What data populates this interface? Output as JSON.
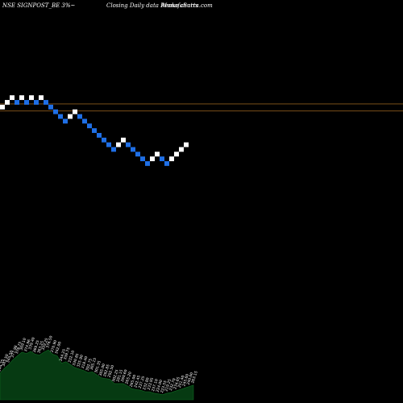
{
  "header": {
    "left": "NSE SIGNPOST_BE 3%~",
    "center": "Closing Daily data  Renko  charts",
    "right": "MunafaSutra.com"
  },
  "chart_data": {
    "type": "renko",
    "price_range": [
      190,
      360
    ],
    "reference_lines": [
      302.0,
      297.5
    ],
    "bricks": [
      {
        "dir": "up",
        "bottom": 298.5
      },
      {
        "dir": "up",
        "bottom": 301.5
      },
      {
        "dir": "up",
        "bottom": 304.5
      },
      {
        "dir": "down",
        "bottom": 301.5
      },
      {
        "dir": "up",
        "bottom": 304.5
      },
      {
        "dir": "down",
        "bottom": 301.5
      },
      {
        "dir": "up",
        "bottom": 304.5
      },
      {
        "dir": "down",
        "bottom": 301.5
      },
      {
        "dir": "up",
        "bottom": 304.5
      },
      {
        "dir": "down",
        "bottom": 301.5
      },
      {
        "dir": "down",
        "bottom": 298.5
      },
      {
        "dir": "down",
        "bottom": 295.5
      },
      {
        "dir": "down",
        "bottom": 292.5
      },
      {
        "dir": "down",
        "bottom": 289.5
      },
      {
        "dir": "up",
        "bottom": 292.5
      },
      {
        "dir": "up",
        "bottom": 295.5
      },
      {
        "dir": "down",
        "bottom": 292.5
      },
      {
        "dir": "down",
        "bottom": 289.5
      },
      {
        "dir": "down",
        "bottom": 286.5
      },
      {
        "dir": "down",
        "bottom": 283.5
      },
      {
        "dir": "down",
        "bottom": 280.5
      },
      {
        "dir": "down",
        "bottom": 277.5
      },
      {
        "dir": "down",
        "bottom": 274.5
      },
      {
        "dir": "down",
        "bottom": 271.5
      },
      {
        "dir": "up",
        "bottom": 274.5
      },
      {
        "dir": "up",
        "bottom": 277.5
      },
      {
        "dir": "down",
        "bottom": 274.5
      },
      {
        "dir": "down",
        "bottom": 271.5
      },
      {
        "dir": "down",
        "bottom": 268.5
      },
      {
        "dir": "down",
        "bottom": 265.5
      },
      {
        "dir": "down",
        "bottom": 262.5
      },
      {
        "dir": "up",
        "bottom": 265.5
      },
      {
        "dir": "up",
        "bottom": 268.5
      },
      {
        "dir": "down",
        "bottom": 265.5
      },
      {
        "dir": "down",
        "bottom": 262.5
      },
      {
        "dir": "up",
        "bottom": 265.5
      },
      {
        "dir": "up",
        "bottom": 268.5
      },
      {
        "dir": "up",
        "bottom": 271.5
      },
      {
        "dir": "up",
        "bottom": 274.5
      }
    ],
    "volume": [
      36,
      43,
      48,
      55,
      60,
      65,
      63,
      66,
      62,
      61,
      65,
      68,
      62,
      60,
      50,
      52,
      48,
      44,
      42,
      40,
      37,
      38,
      34,
      30,
      29,
      28,
      22,
      22,
      22,
      19,
      15,
      14,
      13,
      11,
      11,
      9,
      8,
      7,
      9,
      10,
      12,
      14,
      16,
      18,
      20
    ],
    "volume_range": [
      0,
      100
    ],
    "volume_labels": [
      "344.35",
      "343.50",
      "345.50",
      "377.98",
      "376.75",
      "369.10",
      "374.96",
      "339.40",
      "369.25",
      "363.25",
      "359.25",
      "376.50",
      "370.90",
      "342.00",
      "344.25",
      "339.75",
      "332.10",
      "330.85",
      "325.90",
      "318.40",
      "302.75",
      "305.15",
      "301.35",
      "305.00",
      "282.85",
      "292.50",
      "302.25",
      "281.15",
      "260.60",
      "265.20",
      "265.00",
      "242.45",
      "237.25",
      "232.80",
      "233.95",
      "237.10",
      "224.00",
      "223.55",
      "219.25",
      "232.70",
      "234.65",
      "251.40",
      "245.60",
      "240.00",
      "263.15"
    ]
  }
}
